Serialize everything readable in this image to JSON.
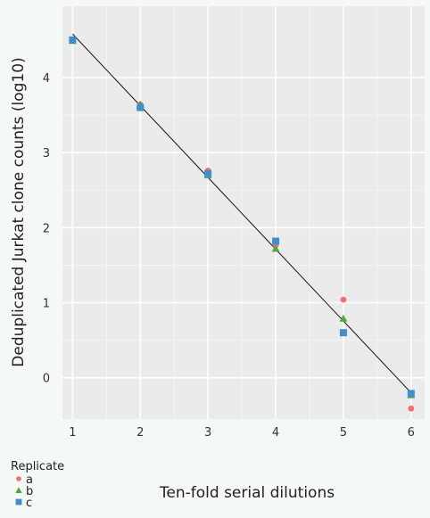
{
  "chart_data": {
    "type": "scatter",
    "xlabel": "Ten-fold serial dilutions",
    "ylabel": "Deduplicated Jurkat clone counts (log10)",
    "x_ticks": [
      "1",
      "2",
      "3",
      "4",
      "5",
      "6"
    ],
    "y_ticks": [
      "0",
      "1",
      "2",
      "3",
      "4"
    ],
    "xlim": [
      0.85,
      6.2
    ],
    "ylim": [
      -0.55,
      4.95
    ],
    "grid": true,
    "legend": {
      "title": "Replicate",
      "placement": "bottom-left"
    },
    "series": [
      {
        "name": "a",
        "shape": "circle",
        "color": "#f0726b",
        "points": [
          [
            1,
            4.5
          ],
          [
            2,
            3.64
          ],
          [
            3,
            2.76
          ],
          [
            4,
            1.77
          ],
          [
            5,
            1.04
          ],
          [
            6,
            -0.41
          ]
        ]
      },
      {
        "name": "b",
        "shape": "triangle",
        "color": "#4dab3a",
        "points": [
          [
            1,
            4.49
          ],
          [
            2,
            3.64
          ],
          [
            3,
            2.7
          ],
          [
            4,
            1.72
          ],
          [
            5,
            0.79
          ],
          [
            6,
            -0.23
          ]
        ]
      },
      {
        "name": "c",
        "shape": "square",
        "color": "#3f8fd0",
        "points": [
          [
            1,
            4.5
          ],
          [
            2,
            3.6
          ],
          [
            3,
            2.72
          ],
          [
            4,
            1.82
          ],
          [
            5,
            0.6
          ],
          [
            6,
            -0.21
          ]
        ]
      }
    ],
    "fit_line": {
      "color": "#111111",
      "points": [
        [
          1,
          4.58
        ],
        [
          6,
          -0.2
        ]
      ]
    }
  }
}
